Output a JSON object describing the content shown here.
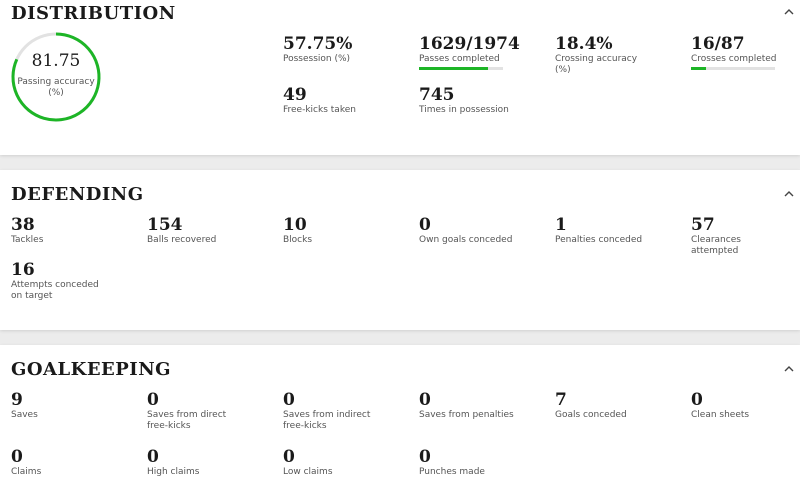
{
  "sections": [
    {
      "title": "DISTRIBUTION",
      "ring": {
        "value": 81.75,
        "label": "Passing accuracy (%)",
        "color": "#1db526",
        "track": "#e2e2e2"
      },
      "stats": [
        {
          "value": "57.75%",
          "label": "Possession (%)"
        },
        {
          "value": "1629/1974",
          "label": "Passes completed",
          "progress": true
        },
        {
          "value": "18.4%",
          "label": "Crossing accuracy (%)"
        },
        {
          "value": "16/87",
          "label": "Crosses completed",
          "progress": true
        },
        {
          "value": "49",
          "label": "Free-kicks taken"
        },
        {
          "value": "745",
          "label": "Times in possession"
        }
      ]
    },
    {
      "title": "DEFENDING",
      "stats": [
        {
          "value": "38",
          "label": "Tackles"
        },
        {
          "value": "154",
          "label": "Balls recovered"
        },
        {
          "value": "10",
          "label": "Blocks"
        },
        {
          "value": "0",
          "label": "Own goals conceded"
        },
        {
          "value": "1",
          "label": "Penalties conceded"
        },
        {
          "value": "57",
          "label": "Clearances attempted"
        },
        {
          "value": "16",
          "label": "Attempts conceded on target"
        }
      ]
    },
    {
      "title": "GOALKEEPING",
      "stats": [
        {
          "value": "9",
          "label": "Saves"
        },
        {
          "value": "0",
          "label": "Saves from direct free-kicks"
        },
        {
          "value": "0",
          "label": "Saves from indirect free-kicks"
        },
        {
          "value": "0",
          "label": "Saves from penalties"
        },
        {
          "value": "7",
          "label": "Goals conceded"
        },
        {
          "value": "0",
          "label": "Clean sheets"
        },
        {
          "value": "0",
          "label": "Claims"
        },
        {
          "value": "0",
          "label": "High claims"
        },
        {
          "value": "0",
          "label": "Low claims"
        },
        {
          "value": "0",
          "label": "Punches made"
        }
      ]
    }
  ]
}
